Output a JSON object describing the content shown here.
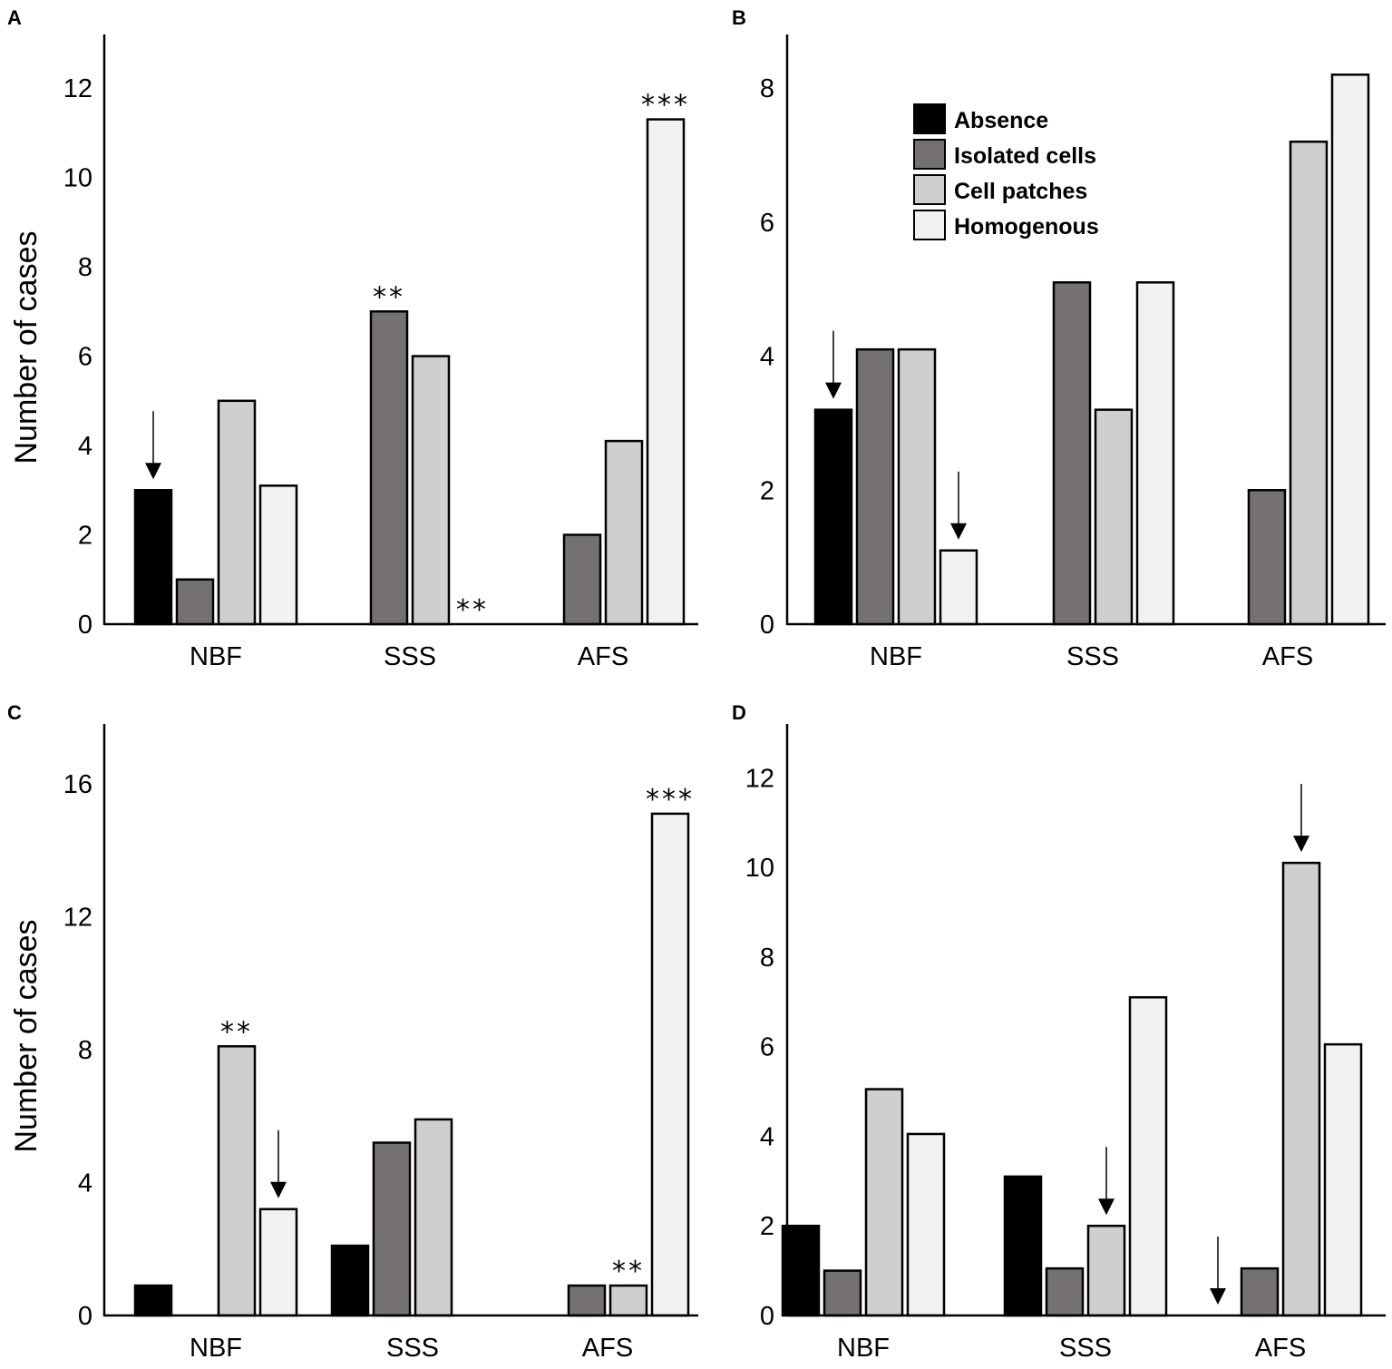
{
  "chart_data": [
    {
      "panel": "A",
      "type": "bar",
      "ylabel": "Number of cases",
      "ylim": [
        0,
        13.2
      ],
      "yticks": [
        0,
        2,
        4,
        6,
        8,
        10,
        12
      ],
      "categories": [
        "NBF",
        "SSS",
        "AFS"
      ],
      "series": [
        {
          "name": "Absence",
          "color": "#000000",
          "values": [
            3,
            0,
            0
          ]
        },
        {
          "name": "Isolated cells",
          "color": "#767171",
          "values": [
            1,
            7,
            2
          ]
        },
        {
          "name": "Cell patches",
          "color": "#d0cece",
          "values": [
            5,
            6,
            4.1
          ]
        },
        {
          "name": "Homogenous",
          "color": "#f2f2f2",
          "values": [
            3.1,
            0,
            11.3
          ]
        }
      ],
      "annotations": [
        {
          "text": "**",
          "category": "SSS",
          "series": "Isolated cells"
        },
        {
          "text": "**",
          "category": "SSS",
          "series": "Homogenous"
        },
        {
          "text": "***",
          "category": "AFS",
          "series": "Homogenous"
        }
      ],
      "arrows": [
        {
          "category": "NBF",
          "series": "Absence"
        }
      ]
    },
    {
      "panel": "B",
      "type": "bar",
      "ylim": [
        0,
        8.8
      ],
      "yticks": [
        0,
        2,
        4,
        6,
        8
      ],
      "categories": [
        "NBF",
        "SSS",
        "AFS"
      ],
      "series": [
        {
          "name": "Absence",
          "color": "#000000",
          "values": [
            3.2,
            0,
            0
          ]
        },
        {
          "name": "Isolated cells",
          "color": "#767171",
          "values": [
            4.1,
            5.1,
            2
          ]
        },
        {
          "name": "Cell patches",
          "color": "#d0cece",
          "values": [
            4.1,
            3.2,
            7.2
          ]
        },
        {
          "name": "Homogenous",
          "color": "#f2f2f2",
          "values": [
            1.1,
            5.1,
            8.2
          ]
        }
      ],
      "legend": {
        "position": "top-center",
        "entries": [
          "Absence",
          "Isolated cells",
          "Cell patches",
          "Homogenous"
        ]
      },
      "annotations": [],
      "arrows": [
        {
          "category": "NBF",
          "series": "Absence"
        },
        {
          "category": "NBF",
          "series": "Homogenous"
        }
      ]
    },
    {
      "panel": "C",
      "type": "bar",
      "ylabel": "Number of cases",
      "ylim": [
        0,
        17.8
      ],
      "yticks": [
        0,
        4,
        8,
        12,
        16
      ],
      "categories": [
        "NBF",
        "SSS",
        "AFS"
      ],
      "series": [
        {
          "name": "Absence",
          "color": "#000000",
          "values": [
            0.9,
            2.1,
            0
          ]
        },
        {
          "name": "Isolated cells",
          "color": "#767171",
          "values": [
            0,
            5.2,
            0.9
          ]
        },
        {
          "name": "Cell patches",
          "color": "#d0cece",
          "values": [
            8.1,
            5.9,
            0.9
          ]
        },
        {
          "name": "Homogenous",
          "color": "#f2f2f2",
          "values": [
            3.2,
            0,
            15.1
          ]
        }
      ],
      "annotations": [
        {
          "text": "**",
          "category": "NBF",
          "series": "Cell patches"
        },
        {
          "text": "**",
          "category": "AFS",
          "series": "Cell patches"
        },
        {
          "text": "***",
          "category": "AFS",
          "series": "Homogenous"
        }
      ],
      "arrows": [
        {
          "category": "NBF",
          "series": "Homogenous"
        }
      ]
    },
    {
      "panel": "D",
      "type": "bar",
      "ylim": [
        0,
        13.2
      ],
      "yticks": [
        0,
        2,
        4,
        6,
        8,
        10,
        12
      ],
      "categories": [
        "NBF",
        "SSS",
        "AFS"
      ],
      "series": [
        {
          "name": "Absence",
          "color": "#000000",
          "values": [
            2,
            3.1,
            0
          ]
        },
        {
          "name": "Isolated cells",
          "color": "#767171",
          "values": [
            1,
            1.05,
            1.05
          ]
        },
        {
          "name": "Cell patches",
          "color": "#d0cece",
          "values": [
            5.05,
            2,
            10.1
          ]
        },
        {
          "name": "Homogenous",
          "color": "#f2f2f2",
          "values": [
            4.05,
            7.1,
            6.05
          ]
        }
      ],
      "annotations": [],
      "arrows": [
        {
          "category": "SSS",
          "series": "Cell patches"
        },
        {
          "category": "AFS",
          "series": "Absence"
        },
        {
          "category": "AFS",
          "series": "Cell patches"
        }
      ]
    }
  ]
}
